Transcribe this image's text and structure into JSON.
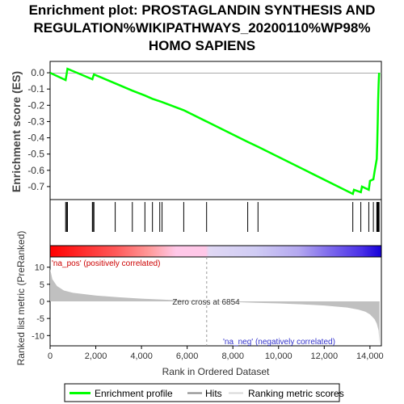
{
  "chart_data": {
    "type": "line",
    "title_lines": [
      "Enrichment plot: PROSTAGLANDIN SYNTHESIS AND",
      "REGULATION%WIKIPATHWAYS_20200110%WP98%",
      "HOMO SAPIENS"
    ],
    "panels": {
      "enrichment": {
        "ylabel": "Enrichment score (ES)",
        "ylim": [
          -0.78,
          0.07
        ],
        "yticks": [
          0.0,
          -0.1,
          -0.2,
          -0.3,
          -0.4,
          -0.5,
          -0.6,
          -0.7
        ],
        "ytick_labels": [
          "0.0",
          "-0.1",
          "-0.2",
          "-0.3",
          "-0.4",
          "-0.5",
          "-0.6",
          "-0.7"
        ],
        "grid": false,
        "series": [
          {
            "name": "Enrichment profile",
            "color": "#00ff00",
            "x": [
              0,
              680,
              720,
              760,
              1850,
              1880,
              1920,
              2850,
              3600,
              4150,
              4480,
              4800,
              4900,
              5850,
              6850,
              8650,
              9100,
              13250,
              13300,
              13600,
              13650,
              13950,
              14000,
              14150,
              14200,
              14300,
              14320,
              14340,
              14360,
              14380,
              14400
            ],
            "y": [
              0.0,
              -0.045,
              -0.01,
              0.025,
              -0.04,
              -0.025,
              -0.01,
              -0.065,
              -0.11,
              -0.14,
              -0.16,
              -0.175,
              -0.18,
              -0.23,
              -0.3,
              -0.425,
              -0.455,
              -0.745,
              -0.72,
              -0.735,
              -0.7,
              -0.72,
              -0.665,
              -0.655,
              -0.61,
              -0.53,
              -0.43,
              -0.3,
              -0.17,
              -0.07,
              0.0
            ]
          }
        ]
      },
      "hits": {
        "positions": [
          680,
          720,
          760,
          1850,
          1880,
          1920,
          2850,
          3600,
          4150,
          4480,
          4800,
          4900,
          5850,
          6850,
          8650,
          9100,
          13250,
          13600,
          13950,
          14150,
          14300,
          14320,
          14340,
          14360,
          14380,
          14400
        ]
      },
      "ranked_metric": {
        "ylabel": "Ranked list metric (PreRanked)",
        "ylim": [
          -13,
          13
        ],
        "yticks": [
          10,
          5,
          0,
          -5,
          -10
        ],
        "ytick_labels": [
          "10",
          "5",
          "0",
          "-5",
          "-10"
        ],
        "annotations": {
          "pos_label": "'na_pos' (positively correlated)",
          "neg_label": "'na_neg' (negatively correlated)",
          "zero_cross": "Zero cross at 6854"
        },
        "zero_cross": 6854,
        "profile": {
          "x": [
            0,
            100,
            300,
            600,
            1000,
            2000,
            3000,
            4000,
            5000,
            6000,
            6854,
            8000,
            9000,
            10000,
            11000,
            12000,
            13000,
            13500,
            13800,
            14000,
            14200,
            14300,
            14380,
            14420
          ],
          "y": [
            9.5,
            6.5,
            4.5,
            3.2,
            2.5,
            1.7,
            1.2,
            0.8,
            0.5,
            0.2,
            0.0,
            -0.2,
            -0.4,
            -0.6,
            -0.85,
            -1.2,
            -1.8,
            -2.4,
            -3.0,
            -3.8,
            -5.2,
            -6.5,
            -8.5,
            -12.5
          ]
        }
      }
    },
    "xlabel": "Rank in Ordered Dataset",
    "xlim": [
      0,
      14500
    ],
    "xticks": [
      0,
      2000,
      4000,
      6000,
      8000,
      10000,
      12000,
      14000
    ],
    "xtick_labels": [
      "0",
      "2,000",
      "4,000",
      "6,000",
      "8,000",
      "10,000",
      "12,000",
      "14,000"
    ],
    "legend": {
      "position": "bottom",
      "entries": [
        {
          "label": "Enrichment profile",
          "color": "#00ff00"
        },
        {
          "label": "Hits",
          "color": "#000000"
        },
        {
          "label": "Ranking metric scores",
          "color": "#c0c0c0"
        }
      ]
    }
  }
}
